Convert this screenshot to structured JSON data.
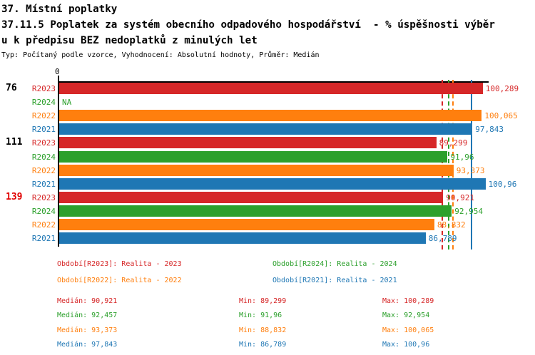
{
  "header": {
    "line1": "37. Místní poplatky",
    "line2": "37.11.5 Poplatek za systém obecního odpadového hospodářství  - % úspěšnosti výběr",
    "line3": "u k předpisu BEZ nedoplatků z minulých let",
    "meta": "Typ: Počítaný podle vzorce, Vyhodnocení: Absolutní hodnoty, Průměr: Medián"
  },
  "chart_data": {
    "type": "bar",
    "orientation": "horizontal",
    "axis": {
      "origin_tick_label": "0",
      "max": 101.8,
      "grid": false
    },
    "series_colors": {
      "R2023": "#d62728",
      "R2024": "#2ca02c",
      "R2022": "#ff7f0e",
      "R2021": "#1f77b4"
    },
    "groups": [
      {
        "label": "76",
        "label_color": "#000000",
        "bars": [
          {
            "year": "R2023",
            "value": 100.289,
            "display": "100,289"
          },
          {
            "year": "R2024",
            "value": null,
            "display": "NA"
          },
          {
            "year": "R2022",
            "value": 100.065,
            "display": "100,065"
          },
          {
            "year": "R2021",
            "value": 97.843,
            "display": "97,843"
          }
        ]
      },
      {
        "label": "111",
        "label_color": "#000000",
        "bars": [
          {
            "year": "R2023",
            "value": 89.299,
            "display": "89,299"
          },
          {
            "year": "R2024",
            "value": 91.96,
            "display": "91,96"
          },
          {
            "year": "R2022",
            "value": 93.373,
            "display": "93,373"
          },
          {
            "year": "R2021",
            "value": 100.96,
            "display": "100,96"
          }
        ]
      },
      {
        "label": "139",
        "label_color": "#e00000",
        "bars": [
          {
            "year": "R2023",
            "value": 90.921,
            "display": "90,921"
          },
          {
            "year": "R2024",
            "value": 92.954,
            "display": "92,954"
          },
          {
            "year": "R2022",
            "value": 88.832,
            "display": "88,832"
          },
          {
            "year": "R2021",
            "value": 86.789,
            "display": "86,789"
          }
        ]
      }
    ],
    "median_lines": [
      {
        "series": "R2023",
        "value": 90.921,
        "style": "dashed"
      },
      {
        "series": "R2024",
        "value": 92.457,
        "style": "dashed"
      },
      {
        "series": "R2022",
        "value": 93.373,
        "style": "dashed"
      },
      {
        "series": "R2021",
        "value": 97.843,
        "style": "solid"
      }
    ]
  },
  "legend": {
    "items": [
      {
        "label": "Období[R2023]: Realita - 2023",
        "series": "R2023",
        "color": "#d62728",
        "row": 0,
        "col": 0
      },
      {
        "label": "Období[R2024]: Realita - 2024",
        "series": "R2024",
        "color": "#2ca02c",
        "row": 0,
        "col": 1
      },
      {
        "label": "Období[R2022]: Realita - 2022",
        "series": "R2022",
        "color": "#ff7f0e",
        "row": 1,
        "col": 0
      },
      {
        "label": "Období[R2021]: Realita - 2021",
        "series": "R2021",
        "color": "#1f77b4",
        "row": 1,
        "col": 1
      }
    ]
  },
  "stats": {
    "rows": [
      {
        "series": "R2023",
        "color": "#d62728",
        "median": "Medián: 90,921",
        "min": "Min: 89,299",
        "max": "Max: 100,289"
      },
      {
        "series": "R2024",
        "color": "#2ca02c",
        "median": "Medián: 92,457",
        "min": "Min: 91,96",
        "max": "Max: 92,954"
      },
      {
        "series": "R2022",
        "color": "#ff7f0e",
        "median": "Medián: 93,373",
        "min": "Min: 88,832",
        "max": "Max: 100,065"
      },
      {
        "series": "R2021",
        "color": "#1f77b4",
        "median": "Medián: 97,843",
        "min": "Min: 86,789",
        "max": "Max: 100,96"
      }
    ]
  }
}
